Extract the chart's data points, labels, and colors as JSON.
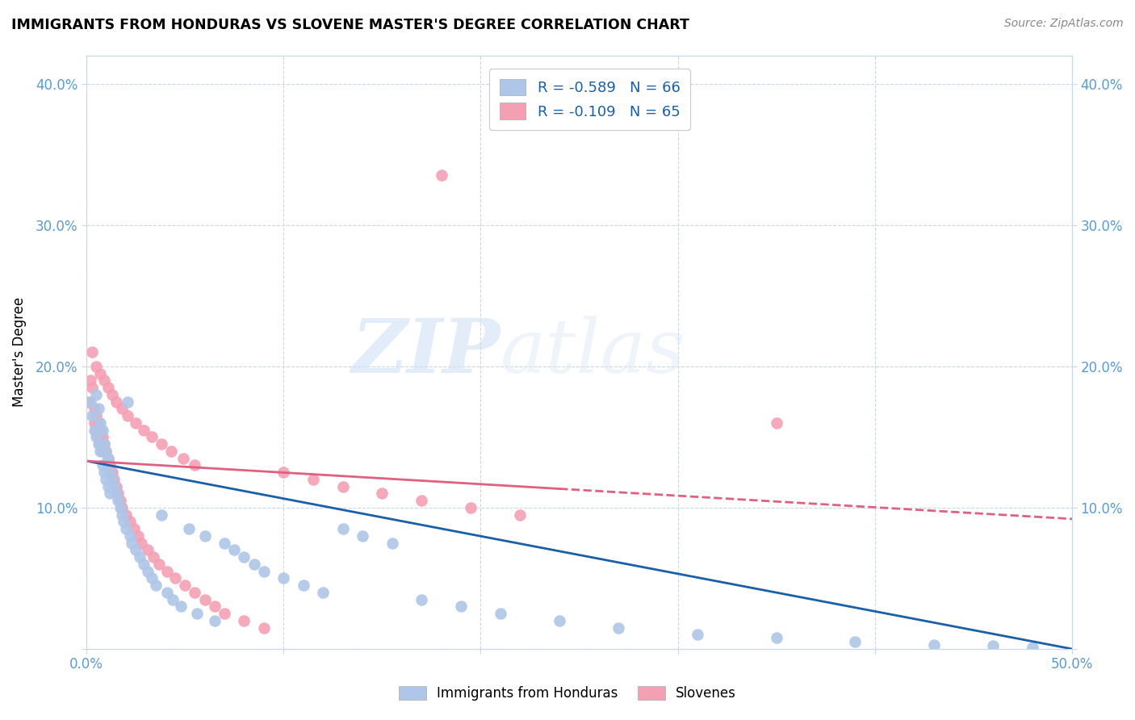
{
  "title": "IMMIGRANTS FROM HONDURAS VS SLOVENE MASTER'S DEGREE CORRELATION CHART",
  "source": "Source: ZipAtlas.com",
  "ylabel": "Master's Degree",
  "xlim": [
    0.0,
    0.5
  ],
  "ylim": [
    0.0,
    0.42
  ],
  "x_ticks": [
    0.0,
    0.1,
    0.2,
    0.3,
    0.4,
    0.5
  ],
  "x_tick_labels": [
    "0.0%",
    "",
    "",
    "",
    "",
    "50.0%"
  ],
  "y_ticks": [
    0.0,
    0.1,
    0.2,
    0.3,
    0.4
  ],
  "y_tick_labels_left": [
    "",
    "10.0%",
    "20.0%",
    "30.0%",
    "40.0%"
  ],
  "y_tick_labels_right": [
    "",
    "10.0%",
    "20.0%",
    "30.0%",
    "40.0%"
  ],
  "legend_blue_text": "R = -0.589   N = 66",
  "legend_pink_text": "R = -0.109   N = 65",
  "blue_color": "#aec6e8",
  "pink_color": "#f4a0b4",
  "blue_line_color": "#1a5fa8",
  "pink_line_color": "#e06080",
  "axis_color": "#5b9bd5",
  "grid_color": "#c8d8ee",
  "watermark_zip": "ZIP",
  "watermark_atlas": "atlas",
  "figsize": [
    14.06,
    8.92
  ],
  "dpi": 100,
  "blue_x": [
    0.002,
    0.003,
    0.004,
    0.005,
    0.005,
    0.006,
    0.006,
    0.007,
    0.007,
    0.008,
    0.008,
    0.009,
    0.009,
    0.01,
    0.01,
    0.011,
    0.011,
    0.012,
    0.012,
    0.013,
    0.014,
    0.015,
    0.016,
    0.017,
    0.018,
    0.019,
    0.02,
    0.021,
    0.022,
    0.023,
    0.025,
    0.027,
    0.029,
    0.031,
    0.033,
    0.035,
    0.038,
    0.041,
    0.044,
    0.048,
    0.052,
    0.056,
    0.06,
    0.065,
    0.07,
    0.075,
    0.08,
    0.085,
    0.09,
    0.1,
    0.11,
    0.12,
    0.13,
    0.14,
    0.155,
    0.17,
    0.19,
    0.21,
    0.24,
    0.27,
    0.31,
    0.35,
    0.39,
    0.43,
    0.46,
    0.48
  ],
  "blue_y": [
    0.175,
    0.165,
    0.155,
    0.18,
    0.15,
    0.17,
    0.145,
    0.16,
    0.14,
    0.155,
    0.13,
    0.145,
    0.125,
    0.14,
    0.12,
    0.135,
    0.115,
    0.125,
    0.11,
    0.12,
    0.115,
    0.11,
    0.105,
    0.1,
    0.095,
    0.09,
    0.085,
    0.175,
    0.08,
    0.075,
    0.07,
    0.065,
    0.06,
    0.055,
    0.05,
    0.045,
    0.095,
    0.04,
    0.035,
    0.03,
    0.085,
    0.025,
    0.08,
    0.02,
    0.075,
    0.07,
    0.065,
    0.06,
    0.055,
    0.05,
    0.045,
    0.04,
    0.085,
    0.08,
    0.075,
    0.035,
    0.03,
    0.025,
    0.02,
    0.015,
    0.01,
    0.008,
    0.005,
    0.003,
    0.002,
    0.001
  ],
  "pink_x": [
    0.001,
    0.002,
    0.003,
    0.004,
    0.004,
    0.005,
    0.005,
    0.006,
    0.006,
    0.007,
    0.007,
    0.008,
    0.008,
    0.009,
    0.01,
    0.011,
    0.012,
    0.013,
    0.014,
    0.015,
    0.016,
    0.017,
    0.018,
    0.02,
    0.022,
    0.024,
    0.026,
    0.028,
    0.031,
    0.034,
    0.037,
    0.041,
    0.045,
    0.05,
    0.055,
    0.06,
    0.065,
    0.07,
    0.08,
    0.09,
    0.1,
    0.115,
    0.13,
    0.15,
    0.17,
    0.195,
    0.22,
    0.003,
    0.005,
    0.007,
    0.009,
    0.011,
    0.013,
    0.015,
    0.018,
    0.021,
    0.025,
    0.029,
    0.033,
    0.038,
    0.043,
    0.049,
    0.055,
    0.18,
    0.35
  ],
  "pink_y": [
    0.175,
    0.19,
    0.185,
    0.16,
    0.17,
    0.155,
    0.165,
    0.15,
    0.16,
    0.145,
    0.155,
    0.14,
    0.15,
    0.145,
    0.14,
    0.135,
    0.13,
    0.125,
    0.12,
    0.115,
    0.11,
    0.105,
    0.1,
    0.095,
    0.09,
    0.085,
    0.08,
    0.075,
    0.07,
    0.065,
    0.06,
    0.055,
    0.05,
    0.045,
    0.04,
    0.035,
    0.03,
    0.025,
    0.02,
    0.015,
    0.125,
    0.12,
    0.115,
    0.11,
    0.105,
    0.1,
    0.095,
    0.21,
    0.2,
    0.195,
    0.19,
    0.185,
    0.18,
    0.175,
    0.17,
    0.165,
    0.16,
    0.155,
    0.15,
    0.145,
    0.14,
    0.135,
    0.13,
    0.335,
    0.16
  ]
}
